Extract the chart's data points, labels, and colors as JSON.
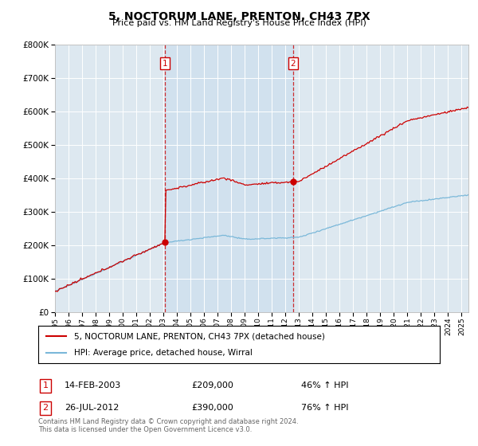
{
  "title": "5, NOCTORUM LANE, PRENTON, CH43 7PX",
  "subtitle": "Price paid vs. HM Land Registry's House Price Index (HPI)",
  "hpi_color": "#7ab8d9",
  "price_color": "#cc0000",
  "background_color": "#ffffff",
  "plot_bg_color": "#dde8f0",
  "shaded_region_color": "#d0e4f0",
  "ylim": [
    0,
    800000
  ],
  "yticks": [
    0,
    100000,
    200000,
    300000,
    400000,
    500000,
    600000,
    700000,
    800000
  ],
  "legend_label_price": "5, NOCTORUM LANE, PRENTON, CH43 7PX (detached house)",
  "legend_label_hpi": "HPI: Average price, detached house, Wirral",
  "transaction1_label": "1",
  "transaction1_date": "14-FEB-2003",
  "transaction1_price": "£209,000",
  "transaction1_hpi": "46% ↑ HPI",
  "transaction1_x": 2003.12,
  "transaction1_y": 209000,
  "transaction2_label": "2",
  "transaction2_date": "26-JUL-2012",
  "transaction2_price": "£390,000",
  "transaction2_hpi": "76% ↑ HPI",
  "transaction2_x": 2012.57,
  "transaction2_y": 390000,
  "footnote": "Contains HM Land Registry data © Crown copyright and database right 2024.\nThis data is licensed under the Open Government Licence v3.0.",
  "xmin": 1995,
  "xmax": 2025.5
}
